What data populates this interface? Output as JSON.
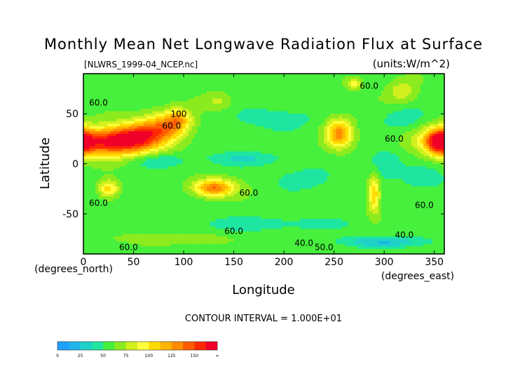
{
  "chart_data": {
    "type": "heatmap",
    "title": "Monthly Mean Net Longwave Radiation Flux at Surface",
    "file_label": "[NLWRS_1999-04_NCEP.nc]",
    "units_label": "(units:W/m^2)",
    "xlabel": "Longitude",
    "ylabel": "Latitude",
    "x_unit_label": "(degrees_east)",
    "y_unit_label": "(degrees_north)",
    "xlim": [
      0,
      360
    ],
    "ylim": [
      -90,
      90
    ],
    "x_ticks": [
      {
        "value": 0,
        "label": "0"
      },
      {
        "value": 50,
        "label": "50"
      },
      {
        "value": 100,
        "label": "100"
      },
      {
        "value": 150,
        "label": "150"
      },
      {
        "value": 200,
        "label": "200"
      },
      {
        "value": 250,
        "label": "250"
      },
      {
        "value": 300,
        "label": "300"
      },
      {
        "value": 350,
        "label": "350"
      }
    ],
    "y_ticks": [
      {
        "value": 50,
        "label": "50"
      },
      {
        "value": 0,
        "label": "0"
      },
      {
        "value": -50,
        "label": "-50"
      }
    ],
    "contour_interval_text": "CONTOUR INTERVAL = 1.000E+01",
    "contour_labels": [
      {
        "text": "60.0",
        "x": 285,
        "y": 75
      },
      {
        "text": "60.0",
        "x": 15,
        "y": 58
      },
      {
        "text": "100",
        "x": 95,
        "y": 47
      },
      {
        "text": "60.0",
        "x": 88,
        "y": 35
      },
      {
        "text": "60.0",
        "x": 310,
        "y": 22
      },
      {
        "text": "60.0",
        "x": 165,
        "y": -32
      },
      {
        "text": "60.0",
        "x": 15,
        "y": -42
      },
      {
        "text": "60.0",
        "x": 340,
        "y": -44
      },
      {
        "text": "60.0",
        "x": 150,
        "y": -70
      },
      {
        "text": "40.0",
        "x": 320,
        "y": -74
      },
      {
        "text": "40.0",
        "x": 220,
        "y": -82
      },
      {
        "text": "60.0",
        "x": 45,
        "y": -86
      },
      {
        "text": "50.0",
        "x": 240,
        "y": -86
      }
    ],
    "color_levels": [
      {
        "min": 0,
        "max": 12.5,
        "color": "#1ea0ff"
      },
      {
        "min": 12.5,
        "max": 25,
        "color": "#1eb4eb"
      },
      {
        "min": 25,
        "max": 37.5,
        "color": "#1ed2c8"
      },
      {
        "min": 37.5,
        "max": 50,
        "color": "#1ee6a0"
      },
      {
        "min": 50,
        "max": 62.5,
        "color": "#46f03c"
      },
      {
        "min": 62.5,
        "max": 75,
        "color": "#8ceb1e"
      },
      {
        "min": 75,
        "max": 87.5,
        "color": "#d2f01e"
      },
      {
        "min": 87.5,
        "max": 100,
        "color": "#ffff3c"
      },
      {
        "min": 100,
        "max": 112.5,
        "color": "#ffdc00"
      },
      {
        "min": 112.5,
        "max": 125,
        "color": "#ffb400"
      },
      {
        "min": 125,
        "max": 137.5,
        "color": "#ff8c00"
      },
      {
        "min": 137.5,
        "max": 150,
        "color": "#ff5a00"
      },
      {
        "min": 150,
        "max": 162.5,
        "color": "#ff2800"
      },
      {
        "min": 162.5,
        "max": 175,
        "color": "#f00028"
      }
    ],
    "colorbar_ticks": [
      "0",
      "25",
      "50",
      "75",
      "100",
      "125",
      "150",
      "∞"
    ],
    "background_value": 58,
    "features": [
      {
        "name": "sahara-arabia",
        "lon": 22,
        "lat": 22,
        "dlon": 28,
        "dlat": 10,
        "peak": 160
      },
      {
        "name": "arabia-iran",
        "lon": 55,
        "lat": 27,
        "dlon": 18,
        "dlat": 10,
        "peak": 125
      },
      {
        "name": "central-asia",
        "lon": 82,
        "lat": 37,
        "dlon": 16,
        "dlat": 10,
        "peak": 120
      },
      {
        "name": "tibet",
        "lon": 95,
        "lat": 45,
        "dlon": 8,
        "dlat": 7,
        "peak": 100
      },
      {
        "name": "mexico-sw-us",
        "lon": 255,
        "lat": 30,
        "dlon": 9,
        "dlat": 10,
        "peak": 130
      },
      {
        "name": "sahara-west",
        "lon": 355,
        "lat": 22,
        "dlon": 9,
        "dlat": 9,
        "peak": 145
      },
      {
        "name": "australia",
        "lon": 130,
        "lat": -24,
        "dlon": 14,
        "dlat": 6,
        "peak": 140
      },
      {
        "name": "south-africa",
        "lon": 25,
        "lat": -25,
        "dlon": 7,
        "dlat": 6,
        "peak": 110
      },
      {
        "name": "andes-atacama",
        "lon": 290,
        "lat": -30,
        "dlon": 4,
        "dlat": 13,
        "peak": 115
      },
      {
        "name": "greenland",
        "lon": 318,
        "lat": 72,
        "dlon": 10,
        "dlat": 8,
        "peak": 85
      },
      {
        "name": "arctic-patch",
        "lon": 270,
        "lat": 80,
        "dlon": 5,
        "dlat": 4,
        "peak": 95
      },
      {
        "name": "siberia-patch",
        "lon": 135,
        "lat": 62,
        "dlon": 10,
        "dlat": 6,
        "peak": 78
      },
      {
        "name": "antarctica-east",
        "lon": 90,
        "lat": -75,
        "dlon": 40,
        "dlat": 4,
        "peak": 72
      },
      {
        "name": "antarctica-coast-low",
        "lon": 300,
        "lat": -78,
        "dlon": 30,
        "dlat": 4,
        "peak": 25
      },
      {
        "name": "intertropical-low-pacific",
        "lon": 160,
        "lat": 5,
        "dlon": 30,
        "dlat": 5,
        "peak": 38
      },
      {
        "name": "intertropical-low-indian",
        "lon": 75,
        "lat": 3,
        "dlon": 20,
        "dlat": 5,
        "peak": 40
      },
      {
        "name": "southern-ocean-low",
        "lon": 180,
        "lat": -60,
        "dlon": 60,
        "dlat": 5,
        "peak": 42
      },
      {
        "name": "south-pacific-low",
        "lon": 220,
        "lat": -15,
        "dlon": 20,
        "dlat": 8,
        "peak": 42
      },
      {
        "name": "north-atlantic-low",
        "lon": 320,
        "lat": 45,
        "dlon": 15,
        "dlat": 8,
        "peak": 40
      },
      {
        "name": "north-pacific-low",
        "lon": 190,
        "lat": 45,
        "dlon": 30,
        "dlat": 8,
        "peak": 42
      },
      {
        "name": "south-atlantic-low",
        "lon": 340,
        "lat": -15,
        "dlon": 15,
        "dlat": 8,
        "peak": 40
      },
      {
        "name": "amazon-low",
        "lon": 300,
        "lat": 0,
        "dlon": 12,
        "dlat": 10,
        "peak": 35
      }
    ]
  }
}
